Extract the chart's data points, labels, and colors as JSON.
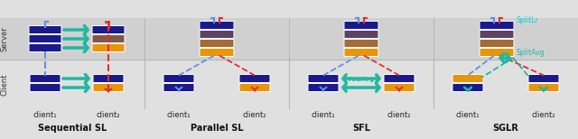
{
  "fig_width": 6.4,
  "fig_height": 1.54,
  "dpi": 100,
  "bg_color": "#e0e0e0",
  "server_bg": "#d0d0d0",
  "client_bg": "#e8e8e8",
  "panel_titles": [
    "Sequential SL",
    "Parallel SL",
    "SFL",
    "SGLR"
  ],
  "client_labels": [
    [
      "client₁",
      "client₂"
    ],
    [
      "client₁",
      "client₂"
    ],
    [
      "client₁",
      "client₂"
    ],
    [
      "client₁",
      "client₂"
    ]
  ],
  "section_labels": [
    "Server",
    "Client"
  ],
  "deep_blue": "#1a1a8c",
  "orange": "#e8950a",
  "teal": "#20b8a0",
  "blue_line": "#6090e0",
  "red_line": "#e03030",
  "cyan": "#00d0d0",
  "splitlr_color": "#00d0d0",
  "splitavg_color": "#20b8a0",
  "fedavg_color": "#20b8a0"
}
